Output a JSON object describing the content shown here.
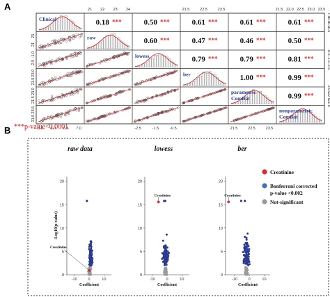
{
  "figure": {
    "panel_a_label": "A",
    "panel_b_label": "B",
    "footnote": "***p-value<0.0001"
  },
  "chart_data": [
    {
      "type": "scatter",
      "panel": "A",
      "kind": "pairs-matrix",
      "variables": [
        "Clinical",
        "raw",
        "lowess",
        "ber",
        "parametric ComBat",
        "nonparametric ComBat"
      ],
      "correlations": [
        {
          "pair": [
            "Clinical",
            "raw"
          ],
          "r": "0.18",
          "sig": "***"
        },
        {
          "pair": [
            "Clinical",
            "lowess"
          ],
          "r": "0.50",
          "sig": "***"
        },
        {
          "pair": [
            "Clinical",
            "ber"
          ],
          "r": "0.61",
          "sig": "***"
        },
        {
          "pair": [
            "Clinical",
            "parametric ComBat"
          ],
          "r": "0.61",
          "sig": "***"
        },
        {
          "pair": [
            "Clinical",
            "nonparametric ComBat"
          ],
          "r": "0.61",
          "sig": "***"
        },
        {
          "pair": [
            "raw",
            "lowess"
          ],
          "r": "0.60",
          "sig": "***"
        },
        {
          "pair": [
            "raw",
            "ber"
          ],
          "r": "0.47",
          "sig": "***"
        },
        {
          "pair": [
            "raw",
            "parametric ComBat"
          ],
          "r": "0.46",
          "sig": "***"
        },
        {
          "pair": [
            "raw",
            "nonparametric ComBat"
          ],
          "r": "0.50",
          "sig": "***"
        },
        {
          "pair": [
            "lowess",
            "ber"
          ],
          "r": "0.79",
          "sig": "***"
        },
        {
          "pair": [
            "lowess",
            "parametric ComBat"
          ],
          "r": "0.79",
          "sig": "***"
        },
        {
          "pair": [
            "lowess",
            "nonparametric ComBat"
          ],
          "r": "0.81",
          "sig": "***"
        },
        {
          "pair": [
            "ber",
            "parametric ComBat"
          ],
          "r": "1.00",
          "sig": "***"
        },
        {
          "pair": [
            "ber",
            "nonparametric ComBat"
          ],
          "r": "0.99",
          "sig": "***"
        },
        {
          "pair": [
            "parametric ComBat",
            "nonparametric ComBat"
          ],
          "r": "0.99",
          "sig": "***"
        }
      ],
      "top_ticks": [
        [
          "21",
          "22",
          "23",
          "24"
        ],
        [
          "21.5",
          "22.5",
          "23.5"
        ],
        [
          "21.5",
          "22.0",
          "22.5",
          "23.0",
          "23.5"
        ]
      ],
      "bottom_ticks": [
        [
          "5.5",
          "6.0",
          "6.5",
          "7.0"
        ],
        [
          "-2.5",
          "-1.5",
          "-0.5"
        ],
        [
          "21.5",
          "22.5",
          "23.5"
        ]
      ],
      "left_ticks": [
        [
          "21",
          "23"
        ],
        [
          "-2.5",
          "-1.0"
        ],
        [
          "21.5",
          "23.0"
        ],
        [
          "21.5",
          "23.0"
        ],
        [
          "21.5",
          "23.5"
        ]
      ],
      "right_ticks": [
        [
          "7.0",
          "6.5",
          "6.0",
          "5.5"
        ],
        [
          "-0.5",
          "-1.5",
          "-2.5"
        ],
        [
          "23.5",
          "22.5",
          "21.5"
        ]
      ],
      "colors": {
        "scatter_point": "#333333",
        "fit_line": "#e8262b",
        "histogram": "#888888",
        "density": "#d22b2b",
        "diag_label": "#2a3d8f"
      }
    },
    {
      "type": "scatter",
      "panel": "B",
      "kind": "volcano",
      "title": "raw data",
      "xlabel": "Coefficient",
      "ylabel": "-Log10(p-value)",
      "xticks": [
        "-10",
        "0",
        "10"
      ],
      "yticks": [
        "0",
        "5",
        "10",
        "15",
        "20"
      ],
      "ylim": [
        0,
        21
      ],
      "xlim": [
        -15,
        15
      ],
      "annotation": {
        "label": "Creatinine",
        "x": 0.3,
        "y": 0.9
      },
      "highlight": {
        "name": "Creatinine",
        "x": 0.3,
        "y": 0.9,
        "color": "#e8262b"
      },
      "outlier_points": [
        {
          "x": -1.5,
          "y": 15.8
        }
      ]
    },
    {
      "type": "scatter",
      "panel": "B",
      "kind": "volcano",
      "title": "lowess",
      "xlabel": "Coefficient",
      "xticks": [
        "-10",
        "0",
        "10"
      ],
      "yticks": [
        "0",
        "5",
        "10",
        "15",
        "20"
      ],
      "ylim": [
        0,
        21
      ],
      "xlim": [
        -15,
        15
      ],
      "annotation": {
        "label": "Creatinine",
        "x": -5.8,
        "y": 15.6
      },
      "highlight": {
        "name": "Creatinine",
        "x": -5.8,
        "y": 15.6,
        "color": "#e8262b"
      },
      "outlier_points": [
        {
          "x": -2.0,
          "y": 15.8
        },
        {
          "x": -1.2,
          "y": 15.8
        }
      ]
    },
    {
      "type": "scatter",
      "panel": "B",
      "kind": "volcano",
      "title": "ber",
      "xlabel": "Coefficient",
      "xticks": [
        "-10",
        "0",
        "10"
      ],
      "yticks": [
        "0",
        "5",
        "10",
        "15",
        "20"
      ],
      "ylim": [
        0,
        21
      ],
      "xlim": [
        -16,
        14
      ],
      "annotation": {
        "label": "Creatinine",
        "x": -14.0,
        "y": 15.6
      },
      "highlight": {
        "name": "Creatinine",
        "x": -14.0,
        "y": 15.6,
        "color": "#e8262b"
      },
      "outlier_points": [
        {
          "x": -5.5,
          "y": 15.8
        },
        {
          "x": -3.0,
          "y": 15.8
        }
      ]
    }
  ],
  "legend": {
    "items": [
      {
        "label": "Creatinine",
        "color": "#e8262b"
      },
      {
        "label": "Bonferroni corrected",
        "label2": "p-value <0.002",
        "color": "#3d73b6"
      },
      {
        "label": "Not-significant",
        "color": "#9a9a9a"
      }
    ]
  }
}
